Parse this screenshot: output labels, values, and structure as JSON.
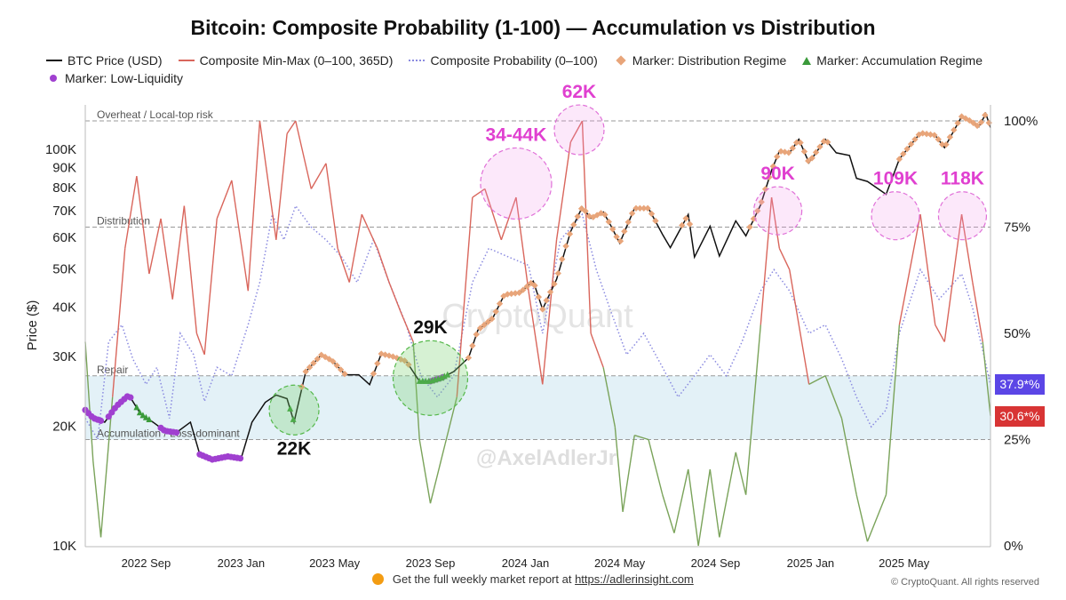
{
  "chart_data": {
    "type": "line",
    "title": "Bitcoin: Composite Probability (1-100) — Accumulation vs Distribution",
    "ylabel_left": "Price ($)",
    "y_left_scale": "log",
    "ylim_left": [
      10000,
      130000
    ],
    "ylim_right": [
      0,
      100
    ],
    "xlim": [
      "2022-06-15",
      "2025-08-20"
    ],
    "x_ticks": [
      "2022 Sep",
      "2023 Jan",
      "2023 May",
      "2023 Sep",
      "2024 Jan",
      "2024 May",
      "2024 Sep",
      "2025 Jan",
      "2025 May"
    ],
    "x_tick_dates": [
      "2022-09-01",
      "2023-01-01",
      "2023-05-01",
      "2023-09-01",
      "2024-01-01",
      "2024-05-01",
      "2024-09-01",
      "2025-01-01",
      "2025-05-01"
    ],
    "y_left_ticks": [
      "10K",
      "20K",
      "30K",
      "40K",
      "50K",
      "60K",
      "70K",
      "80K",
      "90K",
      "100K"
    ],
    "y_left_tick_values": [
      10000,
      20000,
      30000,
      40000,
      50000,
      60000,
      70000,
      80000,
      90000,
      100000
    ],
    "y_right_ticks": [
      "0%",
      "25%",
      "50%",
      "75%",
      "100%"
    ],
    "y_right_tick_values": [
      0,
      25,
      50,
      75,
      100
    ],
    "legend": [
      {
        "label": "BTC Price (USD)",
        "kind": "line",
        "color": "#111111"
      },
      {
        "label": "Composite Min-Max (0–100, 365D)",
        "kind": "line",
        "color": "#d9665c"
      },
      {
        "label": "Composite Probability (0–100)",
        "kind": "dotted",
        "color": "#8a8ae0"
      },
      {
        "label": "Marker: Distribution Regime",
        "kind": "diamond",
        "color": "#e8a57a"
      },
      {
        "label": "Marker: Accumulation Regime",
        "kind": "triangle",
        "color": "#3a9a3a"
      },
      {
        "label": "Marker: Low-Liquidity",
        "kind": "circle",
        "color": "#a040d0"
      }
    ],
    "zones": [
      {
        "label": "Overheat / Local-top risk",
        "value": 100
      },
      {
        "label": "Distribution",
        "value": 75
      },
      {
        "label": "Repair",
        "value": 40
      },
      {
        "label": "Accumulation / Loss-dominant",
        "value": 25
      }
    ],
    "band": {
      "from": 25,
      "to": 40,
      "color": "#e3f1f7"
    },
    "annotations": [
      {
        "text": "22K",
        "date": "2023-03-10",
        "price": 22000,
        "color": "#111111",
        "circle": "green"
      },
      {
        "text": "29K",
        "date": "2023-09-01",
        "price": 26500,
        "color": "#111111",
        "circle": "green"
      },
      {
        "text": "34-44K",
        "date": "2023-12-20",
        "price": 82000,
        "color": "#e040d0",
        "circle": "pink"
      },
      {
        "text": "62K",
        "date": "2024-03-10",
        "price": 112000,
        "color": "#e040d0",
        "circle": "pink"
      },
      {
        "text": "90K",
        "date": "2024-11-20",
        "price": 70000,
        "color": "#e040d0",
        "circle": "pink"
      },
      {
        "text": "109K",
        "date": "2025-04-20",
        "price": 68000,
        "color": "#e040d0",
        "circle": "pink"
      },
      {
        "text": "118K",
        "date": "2025-07-15",
        "price": 68000,
        "color": "#e040d0",
        "circle": "pink"
      }
    ],
    "current_values": [
      {
        "label": "37.9*%",
        "value": 37.9,
        "color": "#5b46e6"
      },
      {
        "label": "30.6*%",
        "value": 30.6,
        "color": "#d83434"
      }
    ],
    "series": [
      {
        "name": "BTC Price (USD)",
        "color": "#111111",
        "points": [
          [
            "2022-06-15",
            22000
          ],
          [
            "2022-06-25",
            21000
          ],
          [
            "2022-07-10",
            20500
          ],
          [
            "2022-07-25",
            22500
          ],
          [
            "2022-08-10",
            24000
          ],
          [
            "2022-08-25",
            21500
          ],
          [
            "2022-09-10",
            20500
          ],
          [
            "2022-09-25",
            19500
          ],
          [
            "2022-10-10",
            19300
          ],
          [
            "2022-10-28",
            20500
          ],
          [
            "2022-11-09",
            17000
          ],
          [
            "2022-11-25",
            16500
          ],
          [
            "2022-12-15",
            16800
          ],
          [
            "2023-01-01",
            16600
          ],
          [
            "2023-01-15",
            20500
          ],
          [
            "2023-02-01",
            23000
          ],
          [
            "2023-02-15",
            24000
          ],
          [
            "2023-03-01",
            23500
          ],
          [
            "2023-03-10",
            20500
          ],
          [
            "2023-03-25",
            27500
          ],
          [
            "2023-04-14",
            30300
          ],
          [
            "2023-04-28",
            29300
          ],
          [
            "2023-05-15",
            27000
          ],
          [
            "2023-06-01",
            27000
          ],
          [
            "2023-06-15",
            25500
          ],
          [
            "2023-06-30",
            30500
          ],
          [
            "2023-07-15",
            30000
          ],
          [
            "2023-08-01",
            29200
          ],
          [
            "2023-08-18",
            26000
          ],
          [
            "2023-09-01",
            26000
          ],
          [
            "2023-09-15",
            26500
          ],
          [
            "2023-10-01",
            27500
          ],
          [
            "2023-10-20",
            29800
          ],
          [
            "2023-11-01",
            35000
          ],
          [
            "2023-11-20",
            37500
          ],
          [
            "2023-12-05",
            43000
          ],
          [
            "2023-12-25",
            43500
          ],
          [
            "2024-01-11",
            46500
          ],
          [
            "2024-01-23",
            39500
          ],
          [
            "2024-02-10",
            47000
          ],
          [
            "2024-02-28",
            62000
          ],
          [
            "2024-03-14",
            71500
          ],
          [
            "2024-03-25",
            67000
          ],
          [
            "2024-04-10",
            69500
          ],
          [
            "2024-04-20",
            64000
          ],
          [
            "2024-05-01",
            58000
          ],
          [
            "2024-05-20",
            71000
          ],
          [
            "2024-06-07",
            71000
          ],
          [
            "2024-06-25",
            61000
          ],
          [
            "2024-07-05",
            56500
          ],
          [
            "2024-07-28",
            68500
          ],
          [
            "2024-08-05",
            53500
          ],
          [
            "2024-08-25",
            64000
          ],
          [
            "2024-09-06",
            53800
          ],
          [
            "2024-09-27",
            66000
          ],
          [
            "2024-10-10",
            60500
          ],
          [
            "2024-10-29",
            72500
          ],
          [
            "2024-11-12",
            88500
          ],
          [
            "2024-11-22",
            99000
          ],
          [
            "2024-12-05",
            98000
          ],
          [
            "2024-12-17",
            106000
          ],
          [
            "2024-12-30",
            92500
          ],
          [
            "2025-01-20",
            106000
          ],
          [
            "2025-02-03",
            98000
          ],
          [
            "2025-02-20",
            96500
          ],
          [
            "2025-03-01",
            84500
          ],
          [
            "2025-03-15",
            83000
          ],
          [
            "2025-04-08",
            77000
          ],
          [
            "2025-04-25",
            94500
          ],
          [
            "2025-05-22",
            110000
          ],
          [
            "2025-06-10",
            108500
          ],
          [
            "2025-06-22",
            101000
          ],
          [
            "2025-07-14",
            121000
          ],
          [
            "2025-07-25",
            118000
          ],
          [
            "2025-08-05",
            114000
          ],
          [
            "2025-08-14",
            123000
          ],
          [
            "2025-08-20",
            113500
          ]
        ]
      },
      {
        "name": "Composite Min-Max (0–100, 365D)",
        "color": "#d9665c",
        "points": [
          [
            "2022-06-15",
            48
          ],
          [
            "2022-06-25",
            20
          ],
          [
            "2022-07-05",
            2
          ],
          [
            "2022-07-20",
            35
          ],
          [
            "2022-08-05",
            70
          ],
          [
            "2022-08-20",
            87
          ],
          [
            "2022-09-05",
            64
          ],
          [
            "2022-09-20",
            77
          ],
          [
            "2022-10-05",
            58
          ],
          [
            "2022-10-20",
            80
          ],
          [
            "2022-11-05",
            50
          ],
          [
            "2022-11-15",
            45
          ],
          [
            "2022-12-01",
            77
          ],
          [
            "2022-12-20",
            86
          ],
          [
            "2023-01-10",
            60
          ],
          [
            "2023-01-25",
            100
          ],
          [
            "2023-02-15",
            72
          ],
          [
            "2023-03-01",
            97
          ],
          [
            "2023-03-12",
            100
          ],
          [
            "2023-04-01",
            84
          ],
          [
            "2023-04-20",
            90
          ],
          [
            "2023-05-05",
            70
          ],
          [
            "2023-05-20",
            62
          ],
          [
            "2023-06-05",
            78
          ],
          [
            "2023-06-25",
            70
          ],
          [
            "2023-07-10",
            62
          ],
          [
            "2023-07-25",
            55
          ],
          [
            "2023-08-10",
            48
          ],
          [
            "2023-08-18",
            25
          ],
          [
            "2023-09-01",
            10
          ],
          [
            "2023-09-20",
            24
          ],
          [
            "2023-10-05",
            35
          ],
          [
            "2023-10-25",
            82
          ],
          [
            "2023-11-10",
            84
          ],
          [
            "2023-12-01",
            72
          ],
          [
            "2023-12-20",
            82
          ],
          [
            "2024-01-05",
            60
          ],
          [
            "2024-01-23",
            38
          ],
          [
            "2024-02-10",
            72
          ],
          [
            "2024-02-28",
            95
          ],
          [
            "2024-03-14",
            100
          ],
          [
            "2024-03-25",
            50
          ],
          [
            "2024-04-10",
            42
          ],
          [
            "2024-04-25",
            28
          ],
          [
            "2024-05-05",
            8
          ],
          [
            "2024-05-20",
            26
          ],
          [
            "2024-06-07",
            25
          ],
          [
            "2024-06-25",
            12
          ],
          [
            "2024-07-10",
            3
          ],
          [
            "2024-07-28",
            18
          ],
          [
            "2024-08-10",
            0
          ],
          [
            "2024-08-25",
            18
          ],
          [
            "2024-09-06",
            2
          ],
          [
            "2024-09-27",
            22
          ],
          [
            "2024-10-10",
            12
          ],
          [
            "2024-10-29",
            52
          ],
          [
            "2024-11-12",
            82
          ],
          [
            "2024-11-22",
            70
          ],
          [
            "2024-12-05",
            65
          ],
          [
            "2024-12-17",
            52
          ],
          [
            "2024-12-30",
            38
          ],
          [
            "2025-01-20",
            40
          ],
          [
            "2025-02-10",
            30
          ],
          [
            "2025-03-01",
            12
          ],
          [
            "2025-03-15",
            1
          ],
          [
            "2025-04-08",
            12
          ],
          [
            "2025-04-25",
            52
          ],
          [
            "2025-05-22",
            78
          ],
          [
            "2025-06-10",
            52
          ],
          [
            "2025-06-22",
            48
          ],
          [
            "2025-07-14",
            78
          ],
          [
            "2025-07-28",
            62
          ],
          [
            "2025-08-10",
            48
          ],
          [
            "2025-08-20",
            30.6
          ]
        ]
      },
      {
        "name": "Composite Probability (0–100)",
        "color": "#8a8ae0",
        "points": [
          [
            "2022-06-15",
            30
          ],
          [
            "2022-07-01",
            25
          ],
          [
            "2022-07-15",
            48
          ],
          [
            "2022-08-01",
            52
          ],
          [
            "2022-08-15",
            44
          ],
          [
            "2022-09-01",
            38
          ],
          [
            "2022-09-15",
            42
          ],
          [
            "2022-10-01",
            30
          ],
          [
            "2022-10-15",
            50
          ],
          [
            "2022-11-01",
            45
          ],
          [
            "2022-11-15",
            34
          ],
          [
            "2022-12-01",
            42
          ],
          [
            "2022-12-20",
            40
          ],
          [
            "2023-01-10",
            52
          ],
          [
            "2023-01-25",
            62
          ],
          [
            "2023-02-10",
            78
          ],
          [
            "2023-02-25",
            72
          ],
          [
            "2023-03-12",
            80
          ],
          [
            "2023-04-01",
            75
          ],
          [
            "2023-04-20",
            72
          ],
          [
            "2023-05-10",
            68
          ],
          [
            "2023-05-30",
            62
          ],
          [
            "2023-06-20",
            72
          ],
          [
            "2023-07-10",
            62
          ],
          [
            "2023-08-01",
            52
          ],
          [
            "2023-08-20",
            40
          ],
          [
            "2023-09-10",
            35
          ],
          [
            "2023-10-01",
            40
          ],
          [
            "2023-10-25",
            62
          ],
          [
            "2023-11-15",
            70
          ],
          [
            "2023-12-10",
            68
          ],
          [
            "2024-01-05",
            66
          ],
          [
            "2024-01-23",
            50
          ],
          [
            "2024-02-15",
            72
          ],
          [
            "2024-03-14",
            78
          ],
          [
            "2024-04-01",
            65
          ],
          [
            "2024-04-20",
            55
          ],
          [
            "2024-05-10",
            45
          ],
          [
            "2024-06-01",
            50
          ],
          [
            "2024-06-25",
            42
          ],
          [
            "2024-07-15",
            35
          ],
          [
            "2024-08-05",
            40
          ],
          [
            "2024-08-25",
            45
          ],
          [
            "2024-09-15",
            40
          ],
          [
            "2024-10-05",
            48
          ],
          [
            "2024-10-29",
            60
          ],
          [
            "2024-11-15",
            65
          ],
          [
            "2024-12-05",
            60
          ],
          [
            "2024-12-30",
            50
          ],
          [
            "2025-01-20",
            52
          ],
          [
            "2025-02-10",
            44
          ],
          [
            "2025-03-01",
            35
          ],
          [
            "2025-03-20",
            28
          ],
          [
            "2025-04-08",
            32
          ],
          [
            "2025-04-25",
            50
          ],
          [
            "2025-05-22",
            65
          ],
          [
            "2025-06-15",
            58
          ],
          [
            "2025-07-14",
            64
          ],
          [
            "2025-07-28",
            56
          ],
          [
            "2025-08-10",
            46
          ],
          [
            "2025-08-20",
            37.9
          ]
        ]
      }
    ],
    "distribution_marker_ranges": [
      [
        "2023-03-20",
        "2023-05-15"
      ],
      [
        "2023-06-20",
        "2023-08-05"
      ],
      [
        "2023-10-20",
        "2024-06-20"
      ],
      [
        "2024-07-20",
        "2024-07-30"
      ],
      [
        "2024-10-15",
        "2025-01-25"
      ],
      [
        "2025-04-25",
        "2025-08-20"
      ]
    ],
    "accumulation_marker_ranges": [
      [
        "2022-08-20",
        "2022-09-05"
      ],
      [
        "2023-03-05",
        "2023-03-12"
      ],
      [
        "2023-08-18",
        "2023-09-25"
      ]
    ],
    "low_liquidity_marker_ranges": [
      [
        "2022-06-15",
        "2022-07-05"
      ],
      [
        "2022-07-15",
        "2022-08-15"
      ],
      [
        "2022-09-20",
        "2022-10-10"
      ],
      [
        "2022-11-09",
        "2022-12-31"
      ],
      [
        "2023-09-01",
        "2023-09-20"
      ]
    ]
  },
  "watermarks": {
    "brand": "CryptoQuant",
    "handle": "@AxelAdlerJr"
  },
  "footer": {
    "text": "Get the full weekly market report at",
    "link": "https://adlerinsight.com",
    "copyright": "© CryptoQuant. All rights reserved"
  }
}
